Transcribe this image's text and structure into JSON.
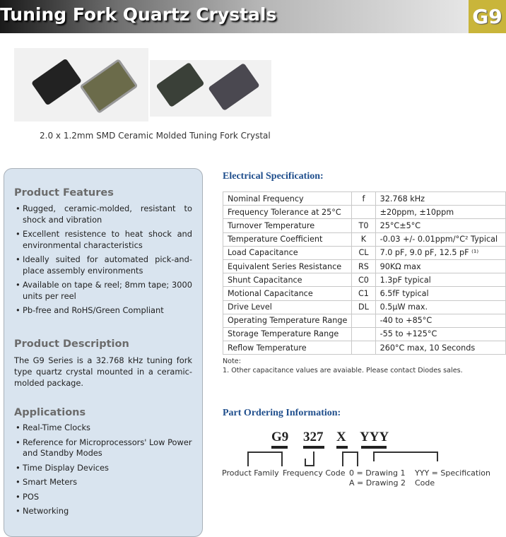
{
  "header": {
    "title": "Tuning Fork Quartz Crystals",
    "badge": "G9"
  },
  "photo_caption": "2.0 x 1.2mm SMD Ceramic Molded Tuning Fork Crystal",
  "features": {
    "heading": "Product Features",
    "items": [
      "Rugged, ceramic-molded, resistant to shock and vibration",
      "Excellent resistence to heat shock and environmental characteristics",
      "Ideally suited for automated pick-and-place assembly environments",
      "Available on tape & reel; 8mm tape;  3000 units per reel",
      "Pb-free and RoHS/Green Compliant"
    ]
  },
  "description": {
    "heading": "Product Description",
    "text": "The G9 Series is a 32.768 kHz tuning fork type quartz crystal mounted in a ceramic-molded package."
  },
  "applications": {
    "heading": "Applications",
    "items": [
      "Real-Time Clocks",
      "Reference for Microprocessors' Low Power and Standby Modes",
      "Time Display Devices",
      "Smart Meters",
      "POS",
      "Networking"
    ]
  },
  "electrical": {
    "heading": "Electrical Specification:",
    "rows": [
      [
        "Nominal Frequency",
        "f",
        "32.768 kHz"
      ],
      [
        "Frequency Tolerance at 25°C",
        "",
        "±20ppm, ±10ppm"
      ],
      [
        "Turnover Temperature",
        "T0",
        "25°C±5°C"
      ],
      [
        "Temperature Coefficient",
        "K",
        "-0.03 +/- 0.01ppm/°C² Typical"
      ],
      [
        "Load Capacitance",
        "CL",
        "7.0 pF, 9.0 pF, 12.5 pF ⁽¹⁾"
      ],
      [
        "Equivalent Series Resistance",
        "RS",
        "90KΩ max"
      ],
      [
        "Shunt Capacitance",
        "C0",
        "1.3pF typical"
      ],
      [
        "Motional Capacitance",
        "C1",
        "6.5fF typical"
      ],
      [
        "Drive Level",
        "DL",
        "0.5μW max."
      ],
      [
        "Operating Temperature Range",
        "",
        "-40 to +85°C"
      ],
      [
        "Storage Temperature Range",
        "",
        "-55 to +125°C"
      ],
      [
        "Reflow Temperature",
        "",
        "260°C max, 10 Seconds"
      ]
    ],
    "note_title": "Note:",
    "note": "1. Other capacitance values are avaiable. Please contact Diodes sales."
  },
  "ordering": {
    "heading": "Part Ordering Information:",
    "codes": [
      "G9",
      "327",
      "X",
      "YYY"
    ],
    "labels": [
      "Product Family",
      "Frequency Code",
      "0 = Drawing 1",
      "A = Drawing 2",
      "YYY = Specification Code"
    ]
  },
  "colors": {
    "badge": "#c9b53a",
    "section_heading": "#1f4e8c",
    "panel": "#d9e4ef"
  }
}
